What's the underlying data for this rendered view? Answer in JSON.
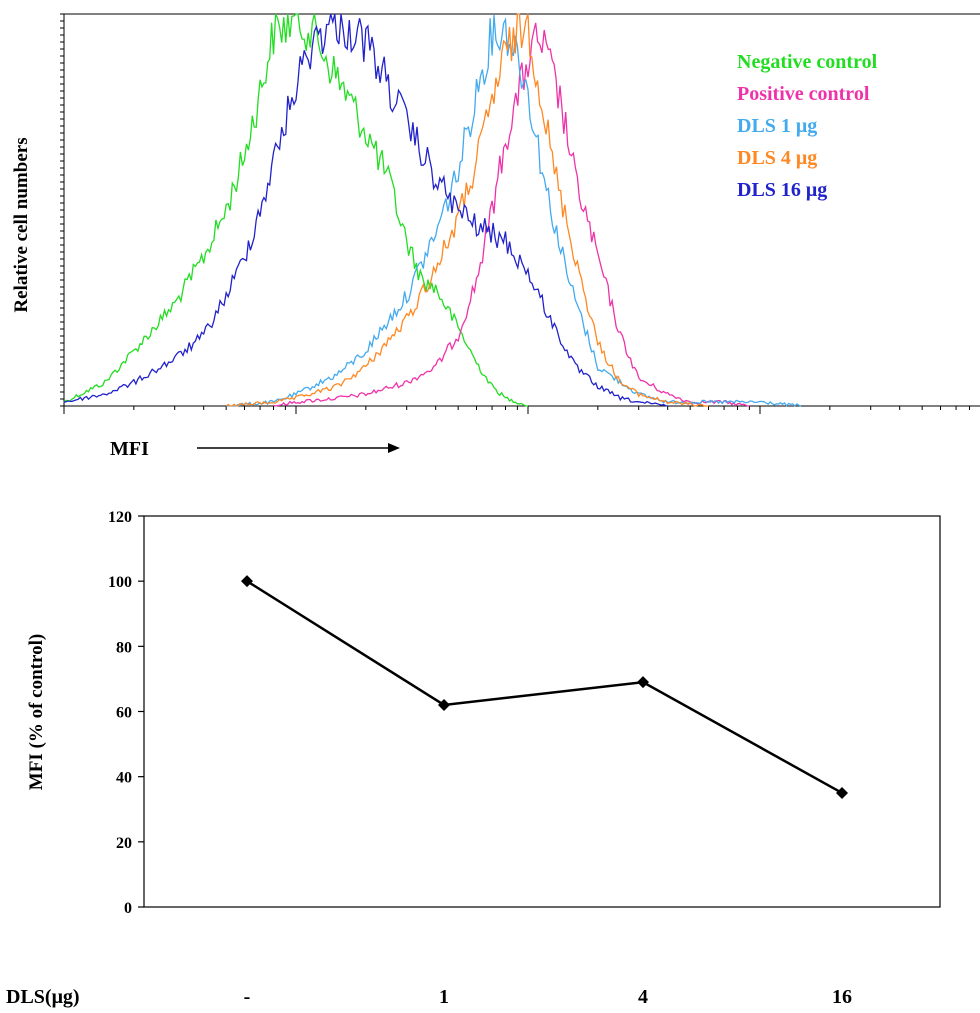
{
  "chart_data": [
    {
      "type": "line",
      "title": "",
      "xlabel": "MFI",
      "ylabel": "Relative cell numbers",
      "x_scale": "log",
      "grid": false,
      "legend_position": "top-right",
      "series": [
        {
          "name": "Negative control",
          "color": "#22dd22",
          "x": [
            1.0,
            1.5,
            2.0,
            3.0,
            4.0,
            5.0,
            6.0,
            7.0,
            8.0,
            10.0,
            12.0,
            14.0,
            17.0,
            20.0,
            25.0,
            30.0,
            35.0,
            40.0,
            50.0,
            60.0,
            70.0,
            80.0,
            90.0,
            100.0
          ],
          "y": [
            0.01,
            0.06,
            0.14,
            0.26,
            0.38,
            0.5,
            0.64,
            0.8,
            0.95,
            0.99,
            0.95,
            0.87,
            0.78,
            0.7,
            0.58,
            0.42,
            0.32,
            0.3,
            0.2,
            0.11,
            0.05,
            0.02,
            0.01,
            0.0
          ]
        },
        {
          "name": "Positive control",
          "color": "#ee33aa",
          "x": [
            8.0,
            10.0,
            15.0,
            20.0,
            30.0,
            40.0,
            50.0,
            60.0,
            70.0,
            80.0,
            100.0,
            110.0,
            120.0,
            140.0,
            160.0,
            200.0,
            250.0,
            300.0,
            400.0,
            500.0,
            700.0,
            900.0
          ],
          "y": [
            0.0,
            0.01,
            0.02,
            0.03,
            0.06,
            0.1,
            0.18,
            0.32,
            0.5,
            0.68,
            0.88,
            0.94,
            0.9,
            0.76,
            0.58,
            0.38,
            0.18,
            0.07,
            0.03,
            0.01,
            0.01,
            0.0
          ]
        },
        {
          "name": "DLS 1 μg",
          "color": "#44aaee",
          "x": [
            5.0,
            8.0,
            10.0,
            15.0,
            20.0,
            30.0,
            40.0,
            50.0,
            60.0,
            70.0,
            80.0,
            90.0,
            100.0,
            120.0,
            150.0,
            200.0,
            300.0,
            400.0,
            600.0,
            1000.0,
            1500.0
          ],
          "y": [
            0.0,
            0.01,
            0.03,
            0.08,
            0.14,
            0.28,
            0.44,
            0.6,
            0.8,
            0.95,
            0.96,
            0.9,
            0.8,
            0.55,
            0.32,
            0.1,
            0.03,
            0.01,
            0.01,
            0.01,
            0.0
          ]
        },
        {
          "name": "DLS 4  μg",
          "color": "#ff8822",
          "x": [
            5.0,
            8.0,
            10.0,
            15.0,
            20.0,
            30.0,
            40.0,
            50.0,
            60.0,
            70.0,
            80.0,
            90.0,
            100.0,
            110.0,
            130.0,
            160.0,
            200.0,
            250.0,
            300.0,
            400.0,
            600.0
          ],
          "y": [
            0.0,
            0.01,
            0.02,
            0.05,
            0.1,
            0.22,
            0.35,
            0.48,
            0.62,
            0.78,
            0.9,
            0.95,
            0.98,
            0.84,
            0.6,
            0.38,
            0.16,
            0.06,
            0.03,
            0.01,
            0.0
          ]
        },
        {
          "name": "DLS 16 μg",
          "color": "#2222cc",
          "x": [
            1.0,
            1.5,
            2.0,
            3.0,
            4.0,
            5.0,
            6.0,
            7.0,
            8.0,
            10.0,
            12.0,
            15.0,
            20.0,
            25.0,
            30.0,
            40.0,
            50.0,
            60.0,
            80.0,
            100.0,
            130.0,
            160.0,
            200.0,
            250.0,
            300.0,
            400.0
          ],
          "y": [
            0.01,
            0.03,
            0.06,
            0.12,
            0.18,
            0.28,
            0.38,
            0.5,
            0.62,
            0.82,
            0.94,
            0.98,
            0.93,
            0.82,
            0.72,
            0.58,
            0.5,
            0.46,
            0.42,
            0.34,
            0.2,
            0.1,
            0.05,
            0.02,
            0.01,
            0.0
          ]
        }
      ]
    },
    {
      "type": "line",
      "title": "",
      "xlabel": "DLS(μg)",
      "ylabel": "MFI (% of control)",
      "categories": [
        "-",
        "1",
        "4",
        "16"
      ],
      "values": [
        100,
        62,
        69,
        35
      ],
      "ylim": [
        0,
        120
      ],
      "yticks": [
        "0",
        "20",
        "40",
        "60",
        "80",
        "100",
        "120"
      ],
      "grid": false,
      "marker": "diamond",
      "line_color": "#000000"
    }
  ]
}
